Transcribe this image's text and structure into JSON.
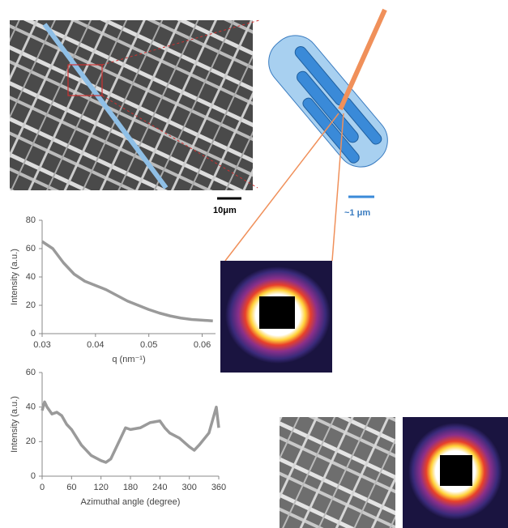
{
  "chart_data": [
    {
      "type": "line",
      "xlabel": "q (nm⁻¹)",
      "ylabel": "Intensity (a.u.)",
      "x": [
        0.03,
        0.032,
        0.034,
        0.036,
        0.038,
        0.04,
        0.042,
        0.044,
        0.046,
        0.048,
        0.05,
        0.052,
        0.054,
        0.056,
        0.058,
        0.06,
        0.062
      ],
      "series": [
        {
          "color": "#9a9a9a",
          "values": [
            65,
            60,
            50,
            42,
            37,
            34,
            31,
            27,
            23,
            20,
            17,
            14.5,
            12.5,
            11,
            10,
            9.5,
            9
          ]
        }
      ],
      "xlim": [
        0.03,
        0.0625
      ],
      "xticks": [
        0.03,
        0.04,
        0.05,
        0.06
      ],
      "ylim": [
        0,
        80
      ],
      "yticks": [
        0,
        20,
        40,
        60,
        80
      ]
    },
    {
      "type": "line",
      "xlabel": "Azimuthal angle (degree)",
      "ylabel": "Intensity (a.u.)",
      "x": [
        0,
        5,
        10,
        20,
        30,
        40,
        50,
        60,
        80,
        100,
        120,
        130,
        140,
        160,
        170,
        180,
        200,
        220,
        240,
        250,
        260,
        280,
        300,
        310,
        320,
        340,
        350,
        355,
        360
      ],
      "series": [
        {
          "color": "#9a9a9a",
          "values": [
            38,
            43,
            40,
            36,
            37,
            35,
            30,
            27,
            18,
            12,
            9,
            8,
            10,
            22,
            28,
            27,
            28,
            31,
            32,
            28,
            25,
            22,
            17,
            15,
            18,
            25,
            35,
            40,
            28
          ]
        }
      ],
      "xlim": [
        0,
        360
      ],
      "xticks": [
        0,
        60,
        120,
        180,
        240,
        300,
        360
      ],
      "ylim": [
        0,
        60
      ],
      "yticks": [
        0,
        20,
        40,
        60
      ]
    }
  ],
  "scale_bars": {
    "sem": "10μm",
    "fiber": "~1 μm"
  }
}
